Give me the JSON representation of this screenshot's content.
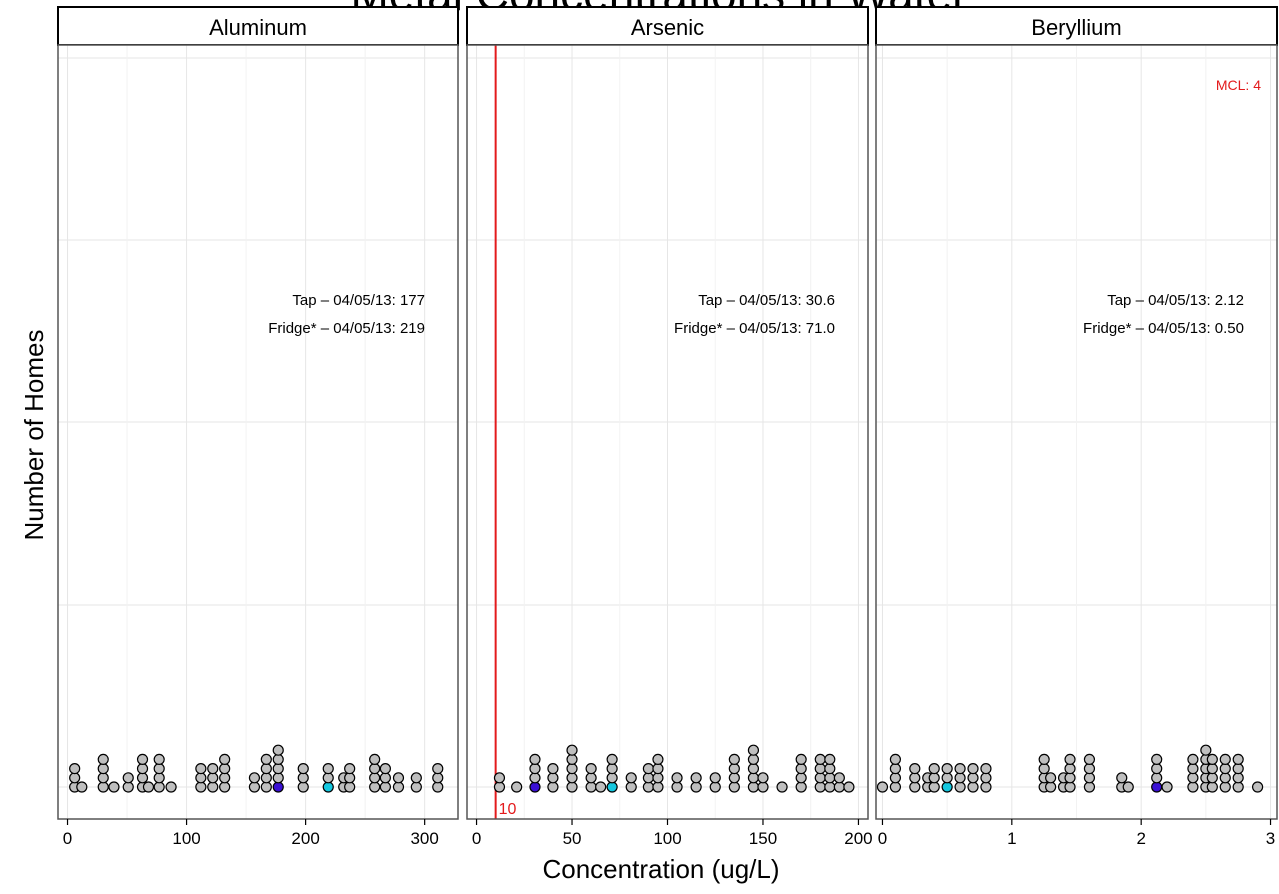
{
  "chart_data": {
    "type": "scatter",
    "title": "Metal Concentrations in Water",
    "xlabel": "Concentration (ug/L)",
    "ylabel": "Number of Homes",
    "grid": true,
    "colors": {
      "dot": "#bfbfbf",
      "tap": "#3a10d4",
      "fridge": "#14c8e0",
      "mcl": "#e31a1c",
      "grid": "#e6e6e6"
    },
    "panels": [
      {
        "name": "Aluminum",
        "xlim": [
          -8,
          328
        ],
        "ticks": [
          0,
          100,
          200,
          300
        ],
        "tick_labels": [
          "0",
          "100",
          "200",
          "300"
        ],
        "annotations": [
          "Tap – 04/05/13: 177",
          "Fridge* – 04/05/13: 219"
        ],
        "tap": 177,
        "fridge": 219,
        "mcl": null,
        "mcl_label": "",
        "values": [
          6,
          6,
          6,
          12,
          30,
          30,
          30,
          30,
          39,
          51,
          51,
          63,
          63,
          63,
          63,
          68,
          77,
          77,
          77,
          77,
          87,
          112,
          112,
          112,
          122,
          122,
          122,
          132,
          132,
          132,
          132,
          157,
          157,
          167,
          167,
          167,
          167,
          177,
          177,
          177,
          177,
          177,
          198,
          198,
          198,
          219,
          219,
          219,
          232,
          232,
          237,
          237,
          237,
          258,
          258,
          258,
          258,
          267,
          267,
          267,
          278,
          278,
          293,
          293,
          311,
          311,
          311
        ],
        "highlight_tap_count": 1,
        "highlight_fridge_count": 1
      },
      {
        "name": "Arsenic",
        "xlim": [
          -5,
          205
        ],
        "ticks": [
          0,
          50,
          100,
          150,
          200
        ],
        "tick_labels": [
          "0",
          "50",
          "100",
          "150",
          "200"
        ],
        "annotations": [
          "Tap – 04/05/13: 30.6",
          "Fridge* – 04/05/13: 71.0"
        ],
        "tap": 30.6,
        "fridge": 71.0,
        "mcl": 10,
        "mcl_label": "10",
        "values": [
          12,
          12,
          21,
          30.6,
          30.6,
          30.6,
          30.6,
          40,
          40,
          40,
          50,
          50,
          50,
          50,
          50,
          60,
          60,
          60,
          65,
          71,
          71,
          71,
          71,
          81,
          81,
          90,
          90,
          90,
          95,
          95,
          95,
          95,
          105,
          105,
          115,
          115,
          125,
          125,
          135,
          135,
          135,
          135,
          145,
          145,
          145,
          145,
          145,
          150,
          150,
          160,
          170,
          170,
          170,
          170,
          180,
          180,
          180,
          180,
          185,
          185,
          185,
          185,
          190,
          190,
          195
        ],
        "highlight_tap_count": 1,
        "highlight_fridge_count": 1
      },
      {
        "name": "Beryllium",
        "xlim": [
          -0.05,
          3.05
        ],
        "ticks": [
          0,
          1,
          2,
          3
        ],
        "tick_labels": [
          "0",
          "1",
          "2",
          "3"
        ],
        "annotations": [
          "Tap – 04/05/13: 2.12",
          "Fridge* – 04/05/13: 0.50"
        ],
        "tap": 2.12,
        "fridge": 0.5,
        "mcl": 4,
        "mcl_label": "MCL: 4",
        "values": [
          0,
          0.1,
          0.1,
          0.1,
          0.1,
          0.25,
          0.25,
          0.25,
          0.35,
          0.35,
          0.4,
          0.4,
          0.4,
          0.5,
          0.5,
          0.5,
          0.6,
          0.6,
          0.6,
          0.7,
          0.7,
          0.7,
          0.8,
          0.8,
          0.8,
          1.25,
          1.25,
          1.25,
          1.25,
          1.3,
          1.3,
          1.4,
          1.4,
          1.45,
          1.45,
          1.45,
          1.45,
          1.6,
          1.6,
          1.6,
          1.6,
          1.85,
          1.85,
          1.9,
          2.12,
          2.12,
          2.12,
          2.12,
          2.2,
          2.4,
          2.4,
          2.4,
          2.4,
          2.5,
          2.5,
          2.5,
          2.5,
          2.5,
          2.55,
          2.55,
          2.55,
          2.55,
          2.65,
          2.65,
          2.65,
          2.65,
          2.75,
          2.75,
          2.75,
          2.75,
          2.9
        ],
        "highlight_tap_count": 1,
        "highlight_fridge_count": 1
      }
    ]
  }
}
